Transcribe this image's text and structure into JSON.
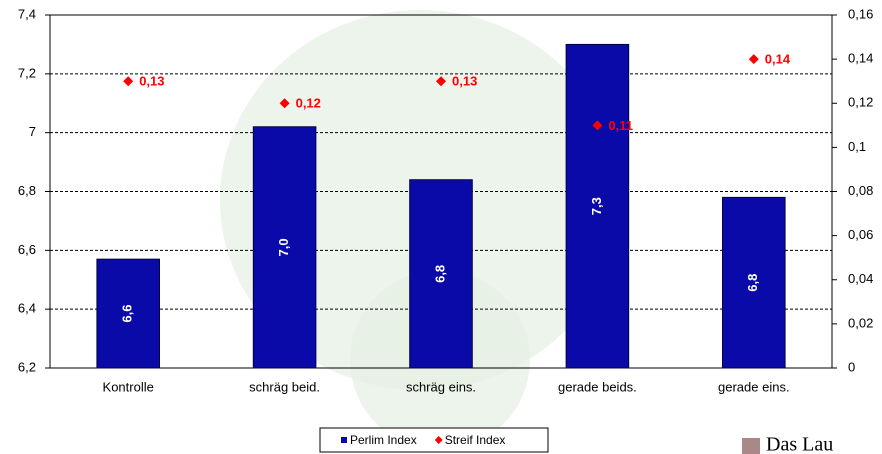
{
  "chart_data": {
    "type": "bar",
    "categories": [
      "Kontrolle",
      "schräg beid.",
      "schräg eins.",
      "gerade beids.",
      "gerade eins."
    ],
    "series": [
      {
        "name": "Perlim Index",
        "type": "bar",
        "color": "#0a0aa8",
        "values": [
          6.57,
          7.02,
          6.84,
          7.3,
          6.78
        ],
        "value_labels": [
          "6,6",
          "7,0",
          "6,8",
          "7,3",
          "6,8"
        ]
      },
      {
        "name": "Streif Index",
        "type": "scatter",
        "axis": "y2",
        "color": "#ff0000",
        "values": [
          0.13,
          0.12,
          0.13,
          0.11,
          0.14
        ],
        "value_labels": [
          "0,13",
          "0,12",
          "0,13",
          "0,11",
          "0,14"
        ]
      }
    ],
    "ylim": [
      6.2,
      7.4
    ],
    "yticks": [
      {
        "value": 6.2,
        "label": "6,2"
      },
      {
        "value": 6.4,
        "label": "6,4"
      },
      {
        "value": 6.6,
        "label": "6,6"
      },
      {
        "value": 6.8,
        "label": "6,8"
      },
      7,
      {
        "value": 7.2,
        "label": "7,2"
      },
      {
        "value": 7.4,
        "label": "7,4"
      }
    ],
    "y2lim": [
      0,
      0.16
    ],
    "y2ticks": [
      0,
      {
        "value": 0.02,
        "label": "0,02"
      },
      {
        "value": 0.04,
        "label": "0,04"
      },
      {
        "value": 0.06,
        "label": "0,06"
      },
      {
        "value": 0.08,
        "label": "0,08"
      },
      {
        "value": 0.1,
        "label": "0,1"
      },
      {
        "value": 0.12,
        "label": "0,12"
      },
      {
        "value": 0.14,
        "label": "0,14"
      },
      {
        "value": 0.16,
        "label": "0,16"
      }
    ],
    "grid": true,
    "legend": "bottom",
    "annotations": [
      "Das Lau"
    ]
  }
}
